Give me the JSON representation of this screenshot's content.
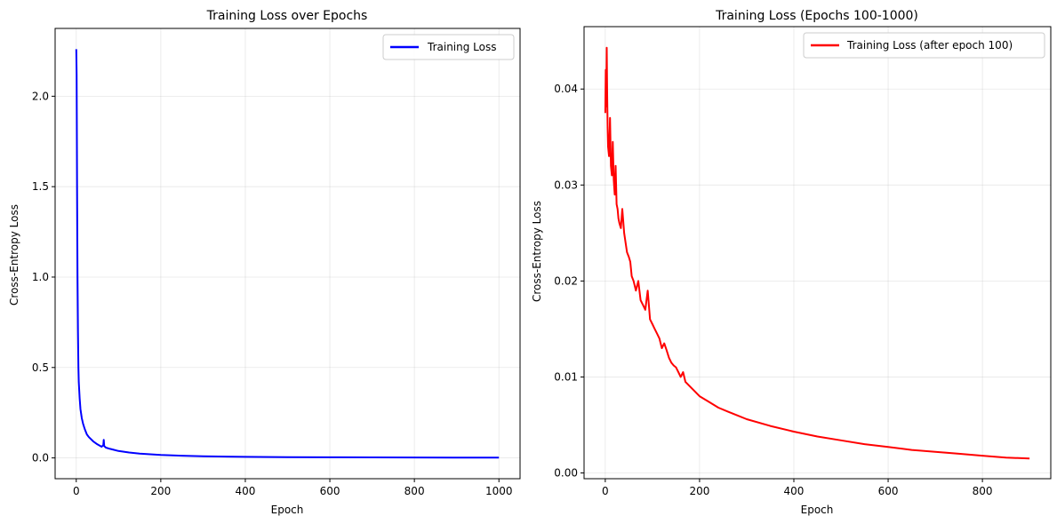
{
  "chart_data": [
    {
      "type": "line",
      "title": "Training Loss over Epochs",
      "xlabel": "Epoch",
      "ylabel": "Cross-Entropy Loss",
      "xlim": [
        -50,
        1050
      ],
      "ylim": [
        -0.115,
        2.375
      ],
      "xticks": [
        0,
        200,
        400,
        600,
        800,
        1000
      ],
      "xtick_labels": [
        "0",
        "200",
        "400",
        "600",
        "800",
        "1000"
      ],
      "yticks": [
        0.0,
        0.5,
        1.0,
        1.5,
        2.0
      ],
      "ytick_labels": [
        "0.0",
        "0.5",
        "1.0",
        "1.5",
        "2.0"
      ],
      "grid": true,
      "legend_position": "top-right",
      "series": [
        {
          "name": "Training Loss",
          "color": "#0000ff",
          "x": [
            0,
            1,
            2,
            3,
            4,
            5,
            6,
            8,
            10,
            13,
            16,
            20,
            25,
            30,
            40,
            50,
            60,
            64,
            65,
            66,
            70,
            80,
            100,
            125,
            150,
            200,
            250,
            300,
            400,
            500,
            600,
            700,
            800,
            900,
            1000
          ],
          "y": [
            2.26,
            2.12,
            1.5,
            1.0,
            0.7,
            0.5,
            0.42,
            0.33,
            0.27,
            0.22,
            0.19,
            0.16,
            0.13,
            0.115,
            0.092,
            0.075,
            0.062,
            0.07,
            0.1,
            0.065,
            0.057,
            0.05,
            0.038,
            0.03,
            0.024,
            0.016,
            0.012,
            0.009,
            0.006,
            0.0045,
            0.0035,
            0.003,
            0.0025,
            0.0021,
            0.0018
          ]
        }
      ]
    },
    {
      "type": "line",
      "title": "Training Loss (Epochs 100-1000)",
      "xlabel": "Epoch",
      "ylabel": "Cross-Entropy Loss",
      "xlim": [
        -45,
        945
      ],
      "ylim": [
        -0.0006,
        0.0465
      ],
      "xticks": [
        0,
        200,
        400,
        600,
        800
      ],
      "xtick_labels": [
        "0",
        "200",
        "400",
        "600",
        "800"
      ],
      "yticks": [
        0.0,
        0.01,
        0.02,
        0.03,
        0.04
      ],
      "ytick_labels": [
        "0.00",
        "0.01",
        "0.02",
        "0.03",
        "0.04"
      ],
      "grid": true,
      "legend_position": "top-right",
      "series": [
        {
          "name": "Training Loss (after epoch 100)",
          "color": "#ff0000",
          "x": [
            0,
            1,
            2,
            3,
            4,
            5,
            6,
            8,
            10,
            12,
            14,
            16,
            18,
            20,
            22,
            24,
            26,
            28,
            30,
            33,
            36,
            40,
            43,
            46,
            50,
            53,
            56,
            60,
            65,
            70,
            75,
            80,
            85,
            90,
            95,
            100,
            105,
            110,
            115,
            120,
            125,
            130,
            135,
            140,
            145,
            150,
            155,
            160,
            165,
            170,
            180,
            190,
            200,
            220,
            240,
            260,
            280,
            300,
            350,
            400,
            450,
            500,
            550,
            600,
            650,
            700,
            750,
            800,
            850,
            900
          ],
          "y": [
            0.0375,
            0.042,
            0.0382,
            0.0443,
            0.0395,
            0.036,
            0.034,
            0.033,
            0.037,
            0.032,
            0.031,
            0.0345,
            0.0305,
            0.029,
            0.032,
            0.028,
            0.0275,
            0.0265,
            0.026,
            0.0255,
            0.0275,
            0.025,
            0.024,
            0.023,
            0.0225,
            0.022,
            0.0205,
            0.02,
            0.019,
            0.02,
            0.018,
            0.0175,
            0.017,
            0.019,
            0.016,
            0.0155,
            0.015,
            0.0145,
            0.014,
            0.013,
            0.0135,
            0.0128,
            0.012,
            0.0115,
            0.0112,
            0.011,
            0.0105,
            0.01,
            0.0105,
            0.0095,
            0.009,
            0.0085,
            0.008,
            0.0074,
            0.0068,
            0.0064,
            0.006,
            0.0056,
            0.0049,
            0.0043,
            0.0038,
            0.0034,
            0.003,
            0.0027,
            0.0024,
            0.0022,
            0.002,
            0.0018,
            0.0016,
            0.0015
          ]
        }
      ]
    }
  ]
}
